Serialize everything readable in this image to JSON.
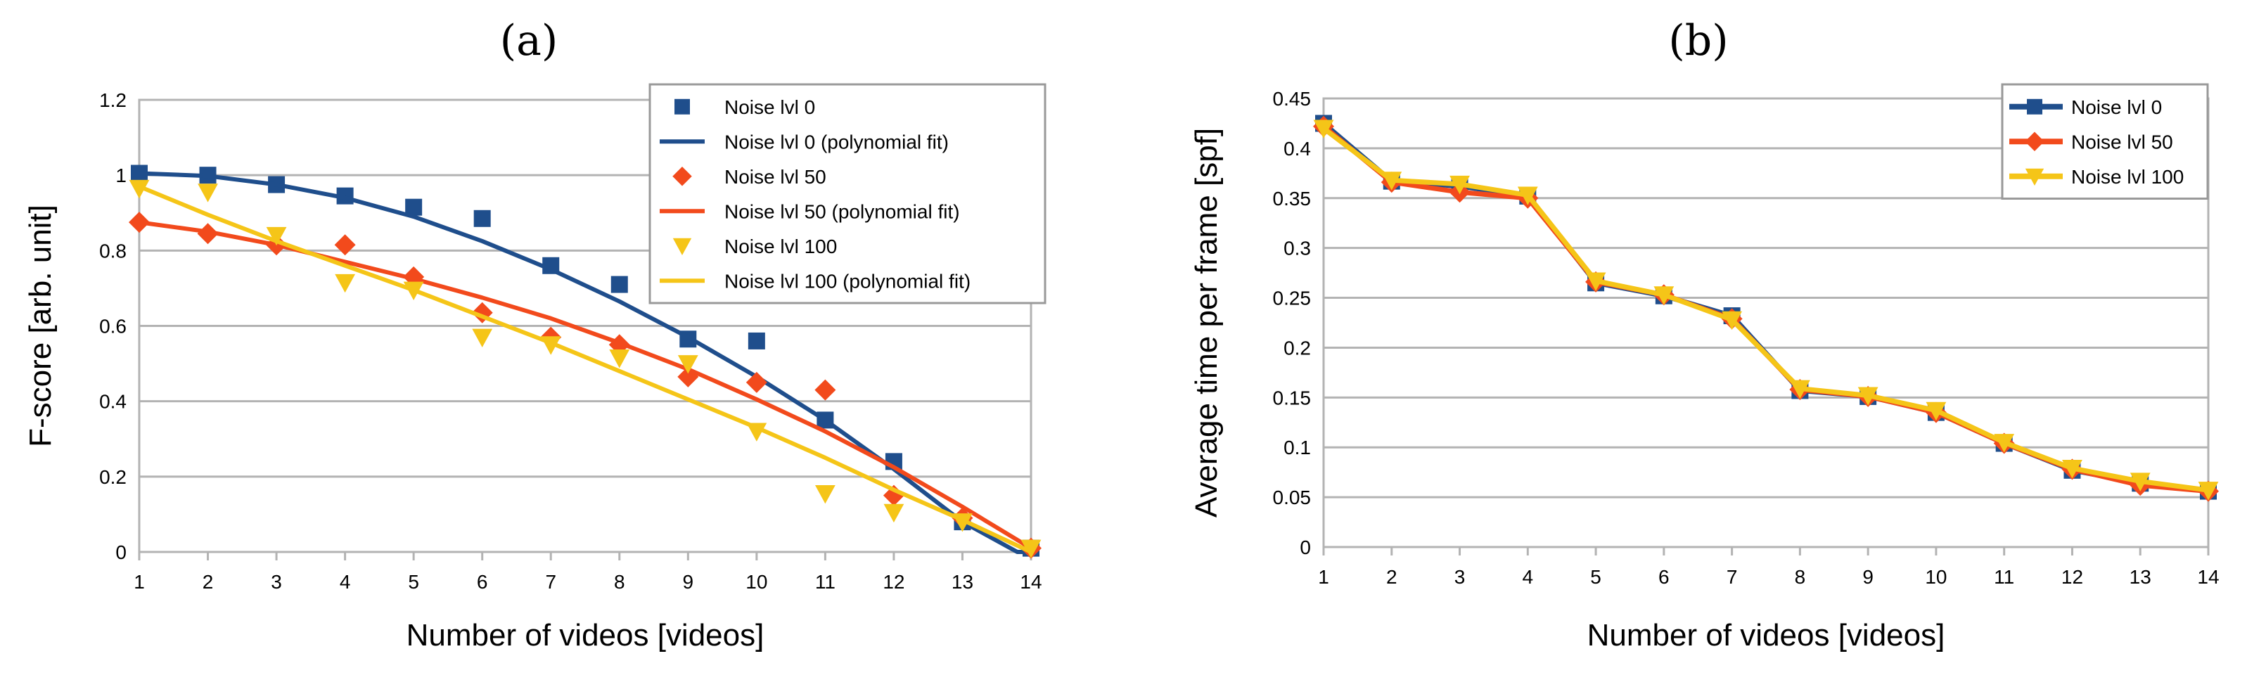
{
  "chart_data": [
    {
      "type": "scatter",
      "panel_label": "(a)",
      "xlabel": "Number of videos [videos]",
      "ylabel": "F-score [arb. unit]",
      "x_ticks": [
        1,
        2,
        3,
        4,
        5,
        6,
        7,
        8,
        9,
        10,
        11,
        12,
        13,
        14
      ],
      "y_ticks": [
        "0",
        "0.2",
        "0.4",
        "0.6",
        "0.8",
        "1",
        "1.2"
      ],
      "xlim": [
        1,
        14
      ],
      "ylim": [
        0,
        1.2
      ],
      "grid": true,
      "legend_position": "top-right",
      "series": [
        {
          "name": "Noise lvl 0",
          "kind": "markers",
          "marker": "square",
          "color": "#1f4e8c",
          "x": [
            1,
            2,
            3,
            4,
            5,
            6,
            7,
            8,
            9,
            10,
            11,
            12,
            13,
            14
          ],
          "values": [
            1.005,
            1.0,
            0.975,
            0.945,
            0.915,
            0.885,
            0.76,
            0.71,
            0.565,
            0.56,
            0.35,
            0.24,
            0.08,
            0.01
          ]
        },
        {
          "name": "Noise lvl 0 (polynomial fit)",
          "kind": "line",
          "color": "#1f4e8c",
          "x": [
            1,
            2,
            3,
            4,
            5,
            6,
            7,
            8,
            9,
            10,
            11,
            12,
            13,
            13.8,
            14
          ],
          "values": [
            1.005,
            0.998,
            0.975,
            0.94,
            0.89,
            0.825,
            0.75,
            0.665,
            0.57,
            0.465,
            0.35,
            0.22,
            0.08,
            0.0,
            0.0
          ]
        },
        {
          "name": "Noise lvl 50",
          "kind": "markers",
          "marker": "diamond",
          "color": "#f24a1c",
          "x": [
            1,
            2,
            3,
            4,
            5,
            6,
            7,
            8,
            9,
            10,
            11,
            12,
            13,
            14
          ],
          "values": [
            0.875,
            0.845,
            0.815,
            0.815,
            0.73,
            0.635,
            0.57,
            0.55,
            0.465,
            0.45,
            0.43,
            0.15,
            0.09,
            0.01
          ]
        },
        {
          "name": "Noise lvl 50 (polynomial fit)",
          "kind": "line",
          "color": "#f24a1c",
          "x": [
            1,
            2,
            3,
            4,
            5,
            6,
            7,
            8,
            9,
            10,
            11,
            12,
            13,
            14
          ],
          "values": [
            0.875,
            0.85,
            0.815,
            0.77,
            0.725,
            0.675,
            0.62,
            0.555,
            0.485,
            0.405,
            0.32,
            0.225,
            0.12,
            0.01
          ]
        },
        {
          "name": "Noise lvl 100",
          "kind": "markers",
          "marker": "triangle-down",
          "color": "#f5c518",
          "x": [
            1,
            2,
            3,
            4,
            5,
            6,
            7,
            8,
            9,
            10,
            11,
            12,
            13,
            14
          ],
          "values": [
            0.965,
            0.955,
            0.84,
            0.715,
            0.695,
            0.57,
            0.55,
            0.515,
            0.5,
            0.32,
            0.155,
            0.105,
            0.08,
            0.01
          ]
        },
        {
          "name": "Noise lvl 100 (polynomial fit)",
          "kind": "line",
          "color": "#f5c518",
          "x": [
            1,
            2,
            3,
            4,
            5,
            6,
            7,
            8,
            9,
            10,
            11,
            12,
            13,
            14
          ],
          "values": [
            0.97,
            0.895,
            0.825,
            0.76,
            0.695,
            0.625,
            0.555,
            0.48,
            0.405,
            0.33,
            0.25,
            0.165,
            0.085,
            0.0
          ]
        }
      ]
    },
    {
      "type": "line",
      "panel_label": "(b)",
      "xlabel": "Number of videos [videos]",
      "ylabel": "Average time per frame [spf]",
      "x_ticks": [
        1,
        2,
        3,
        4,
        5,
        6,
        7,
        8,
        9,
        10,
        11,
        12,
        13,
        14
      ],
      "y_ticks": [
        "0",
        "0.05",
        "0.1",
        "0.15",
        "0.2",
        "0.25",
        "0.3",
        "0.35",
        "0.4",
        "0.45"
      ],
      "xlim": [
        1,
        14
      ],
      "ylim": [
        0,
        0.45
      ],
      "grid": true,
      "legend_position": "top-right",
      "series": [
        {
          "name": "Noise lvl 0",
          "marker": "square",
          "color": "#1f4e8c",
          "x": [
            1,
            2,
            3,
            4,
            5,
            6,
            7,
            8,
            9,
            10,
            11,
            12,
            13,
            14
          ],
          "values": [
            0.425,
            0.367,
            0.362,
            0.352,
            0.265,
            0.252,
            0.232,
            0.157,
            0.151,
            0.135,
            0.104,
            0.077,
            0.064,
            0.056
          ]
        },
        {
          "name": "Noise lvl 50",
          "marker": "diamond",
          "color": "#f24a1c",
          "x": [
            1,
            2,
            3,
            4,
            5,
            6,
            7,
            8,
            9,
            10,
            11,
            12,
            13,
            14
          ],
          "values": [
            0.422,
            0.366,
            0.356,
            0.35,
            0.266,
            0.253,
            0.229,
            0.158,
            0.151,
            0.135,
            0.104,
            0.078,
            0.062,
            0.056
          ]
        },
        {
          "name": "Noise lvl 100",
          "marker": "triangle-down",
          "color": "#f5c518",
          "x": [
            1,
            2,
            3,
            4,
            5,
            6,
            7,
            8,
            9,
            10,
            11,
            12,
            13,
            14
          ],
          "values": [
            0.42,
            0.368,
            0.364,
            0.353,
            0.267,
            0.253,
            0.228,
            0.159,
            0.152,
            0.137,
            0.105,
            0.079,
            0.066,
            0.057
          ]
        }
      ]
    }
  ]
}
